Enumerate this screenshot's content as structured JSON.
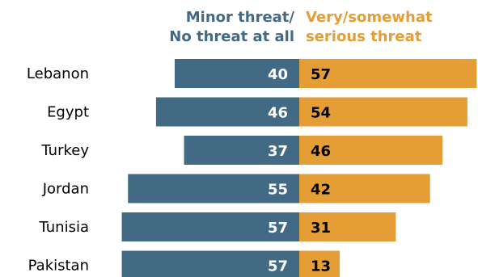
{
  "chart_data": {
    "type": "bar",
    "orientation": "horizontal-diverging",
    "categories": [
      "Lebanon",
      "Egypt",
      "Turkey",
      "Jordan",
      "Tunisia",
      "Pakistan"
    ],
    "series": [
      {
        "name": "Minor threat/ No threat at all",
        "name_lines": [
          "Minor threat/",
          "No threat at all"
        ],
        "values": [
          40,
          46,
          37,
          55,
          57,
          57
        ],
        "color": "#426a84"
      },
      {
        "name": "Very/somewhat serious threat",
        "name_lines": [
          "Very/somewhat",
          "serious threat"
        ],
        "values": [
          57,
          54,
          46,
          42,
          31,
          13
        ],
        "color": "#e49e35"
      }
    ],
    "legend_placement": "top",
    "grid": false
  }
}
